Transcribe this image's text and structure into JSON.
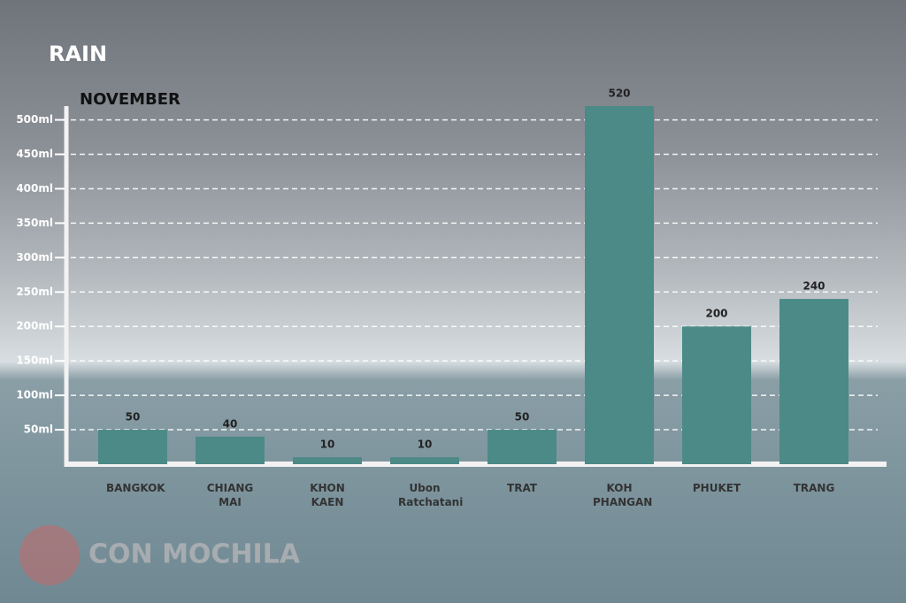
{
  "chart_data": {
    "type": "bar",
    "title": "RAIN",
    "subtitle": "NOVEMBER",
    "categories": [
      "BANGKOK",
      "CHIANG MAI",
      "KHON KAEN",
      "Ubon Ratchatani",
      "TRAT",
      "KOH PHANGAN",
      "PHUKET",
      "TRANG"
    ],
    "values": [
      50,
      40,
      10,
      10,
      50,
      520,
      200,
      240
    ],
    "color": "#4b8a87",
    "ylim": [
      0,
      520
    ],
    "yticks": [
      {
        "value": 50,
        "label": "50ml"
      },
      {
        "value": 100,
        "label": "100ml"
      },
      {
        "value": 150,
        "label": "150ml"
      },
      {
        "value": 200,
        "label": "200ml"
      },
      {
        "value": 250,
        "label": "250ml"
      },
      {
        "value": 300,
        "label": "300ml"
      },
      {
        "value": 350,
        "label": "350ml"
      },
      {
        "value": 400,
        "label": "400ml"
      },
      {
        "value": 450,
        "label": "450ml"
      },
      {
        "value": 500,
        "label": "500ml"
      }
    ],
    "grid": true
  },
  "watermark": "CON MOCHILA"
}
